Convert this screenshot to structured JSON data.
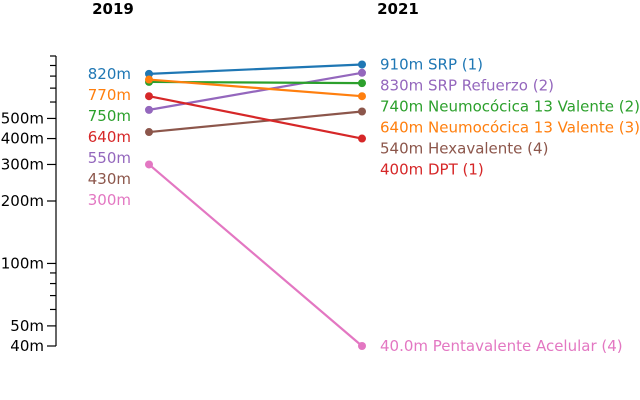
{
  "chart_data": {
    "type": "line",
    "x": [
      "2019",
      "2021"
    ],
    "y_scale": "log",
    "ylim": [
      40,
      1000
    ],
    "y_ticks": [
      {
        "value": 40,
        "label": "40m"
      },
      {
        "value": 50,
        "label": "50m"
      },
      {
        "value": 60,
        "label": ""
      },
      {
        "value": 70,
        "label": ""
      },
      {
        "value": 80,
        "label": ""
      },
      {
        "value": 90,
        "label": ""
      },
      {
        "value": 100,
        "label": "100m"
      },
      {
        "value": 200,
        "label": "200m"
      },
      {
        "value": 300,
        "label": "300m"
      },
      {
        "value": 400,
        "label": "400m"
      },
      {
        "value": 500,
        "label": "500m"
      },
      {
        "value": 600,
        "label": ""
      },
      {
        "value": 700,
        "label": ""
      },
      {
        "value": 800,
        "label": ""
      },
      {
        "value": 900,
        "label": ""
      },
      {
        "value": 1000,
        "label": ""
      }
    ],
    "series": [
      {
        "name": "SRP (1)",
        "color": "#1f77b4",
        "values": [
          820,
          910
        ],
        "start_label": "820m",
        "end_label": "910m SRP (1)"
      },
      {
        "name": "SRP Refuerzo (2)",
        "color": "#9467bd",
        "values": [
          550,
          830
        ],
        "start_label": "550m",
        "end_label": "830m SRP Refuerzo (2)"
      },
      {
        "name": "Neumocócica 13 Valente (2)",
        "color": "#2ca02c",
        "values": [
          750,
          740
        ],
        "start_label": "750m",
        "end_label": "740m Neumocócica 13 Valente (2)"
      },
      {
        "name": "Neumocócica 13 Valente (3)",
        "color": "#ff7f0e",
        "values": [
          770,
          640
        ],
        "start_label": "770m",
        "end_label": "640m Neumocócica 13 Valente (3)"
      },
      {
        "name": "Hexavalente (4)",
        "color": "#8c564b",
        "values": [
          430,
          540
        ],
        "start_label": "430m",
        "end_label": "540m Hexavalente (4)"
      },
      {
        "name": "DPT (1)",
        "color": "#d62728",
        "values": [
          640,
          400
        ],
        "start_label": "640m",
        "end_label": "400m DPT (1)"
      },
      {
        "name": "Pentavalente Acelular (4)",
        "color": "#e377c2",
        "values": [
          300,
          40
        ],
        "start_label": "300m",
        "end_label": "40.0m Pentavalente Acelular (4)"
      }
    ],
    "start_label_order": [
      0,
      3,
      2,
      5,
      1,
      4,
      6
    ],
    "end_label_order": [
      0,
      1,
      2,
      3,
      4,
      5,
      6
    ]
  }
}
